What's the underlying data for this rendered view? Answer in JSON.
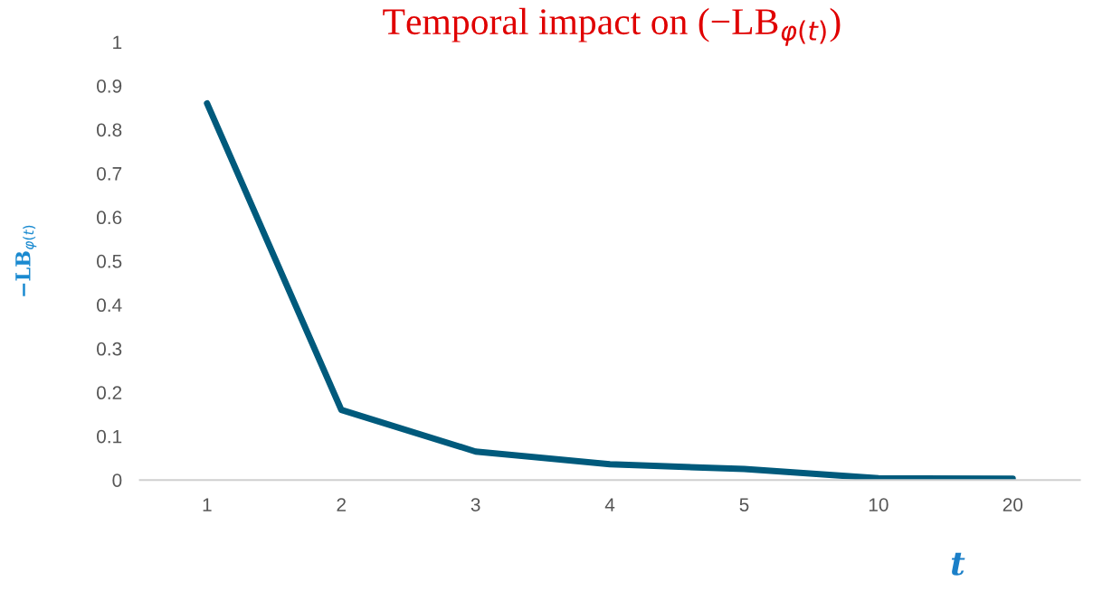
{
  "chart_data": {
    "type": "line",
    "title": "Temporal impact on (−LB$_{φ(t)}$)",
    "xlabel": "t",
    "ylabel": "−LB$_{φ(t)}$",
    "categories": [
      "1",
      "2",
      "3",
      "4",
      "5",
      "10",
      "20"
    ],
    "series": [
      {
        "color": "#005a7c",
        "values": [
          0.86,
          0.16,
          0.065,
          0.036,
          0.025,
          0.004,
          0.003
        ]
      }
    ],
    "ylim": [
      0,
      1
    ],
    "yticks": [
      0,
      0.1,
      0.2,
      0.3,
      0.4,
      0.5,
      0.6,
      0.7,
      0.8,
      0.9,
      1
    ],
    "grid": false,
    "legend": false,
    "marker": "none",
    "line_style": "solid"
  }
}
